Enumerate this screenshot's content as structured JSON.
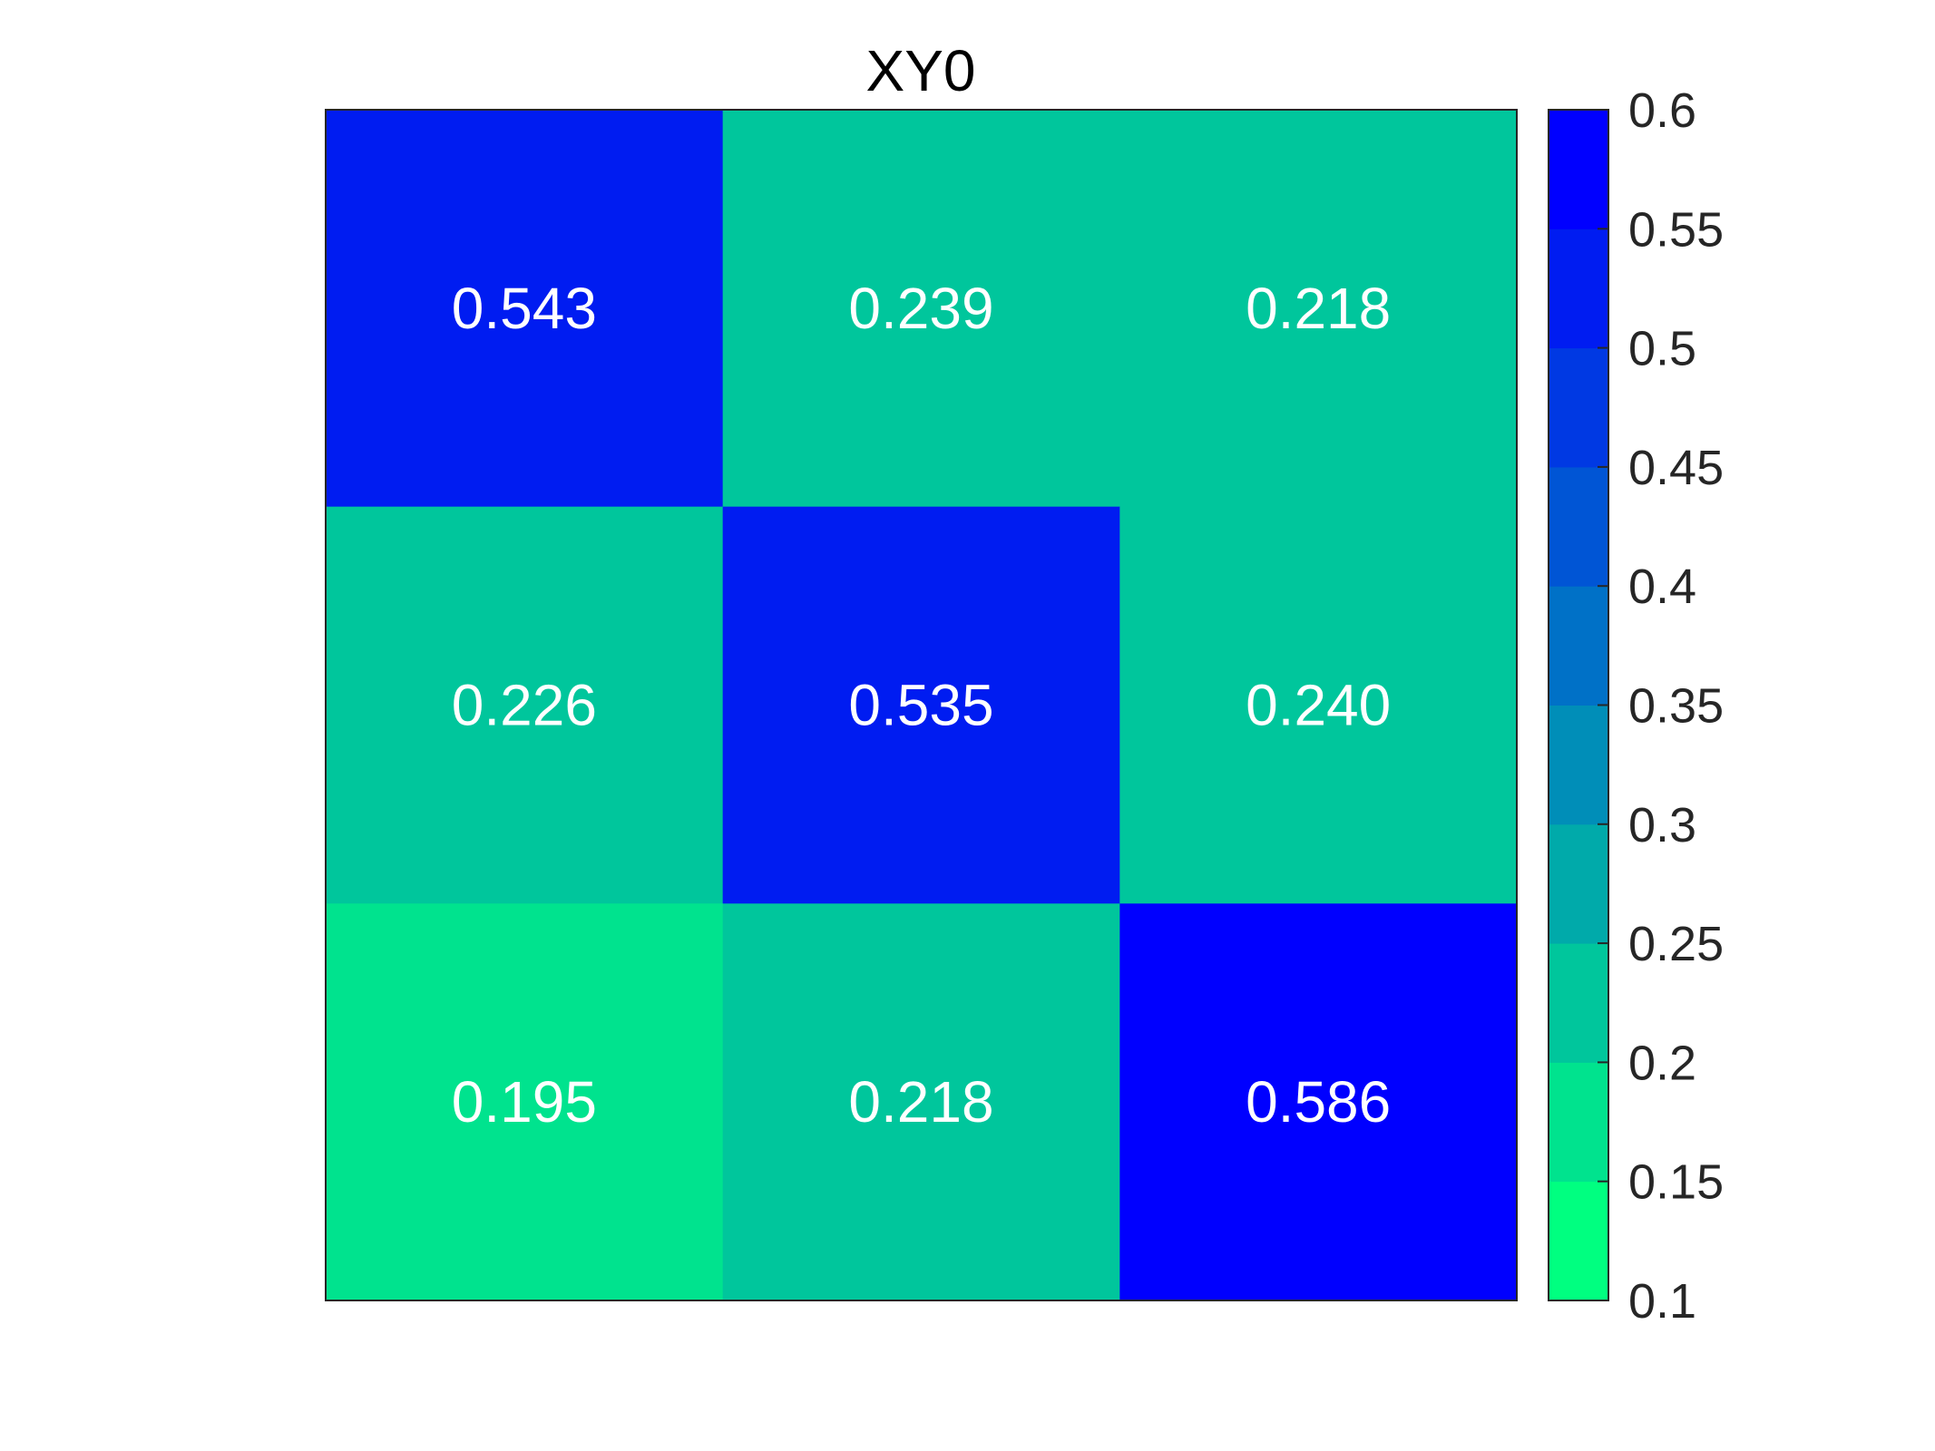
{
  "chart_data": {
    "type": "heatmap",
    "title": "XY0",
    "rows": 3,
    "cols": 3,
    "values": [
      [
        0.543,
        0.239,
        0.218
      ],
      [
        0.226,
        0.535,
        0.24
      ],
      [
        0.195,
        0.218,
        0.586
      ]
    ],
    "cell_labels": [
      [
        "0.543",
        "0.239",
        "0.218"
      ],
      [
        "0.226",
        "0.535",
        "0.240"
      ],
      [
        "0.195",
        "0.218",
        "0.586"
      ]
    ],
    "colorbar": {
      "range": [
        0.1,
        0.6
      ],
      "ticks": [
        0.1,
        0.15,
        0.2,
        0.25,
        0.3,
        0.35,
        0.4,
        0.45,
        0.5,
        0.55,
        0.6
      ],
      "tick_labels": [
        "0.1",
        "0.15",
        "0.2",
        "0.25",
        "0.3",
        "0.35",
        "0.4",
        "0.45",
        "0.5",
        "0.55",
        "0.6"
      ],
      "levels": 10,
      "color_low": "#00ff80",
      "color_high": "#0000ff"
    },
    "axis_ticks_shown": false,
    "grid": false
  }
}
